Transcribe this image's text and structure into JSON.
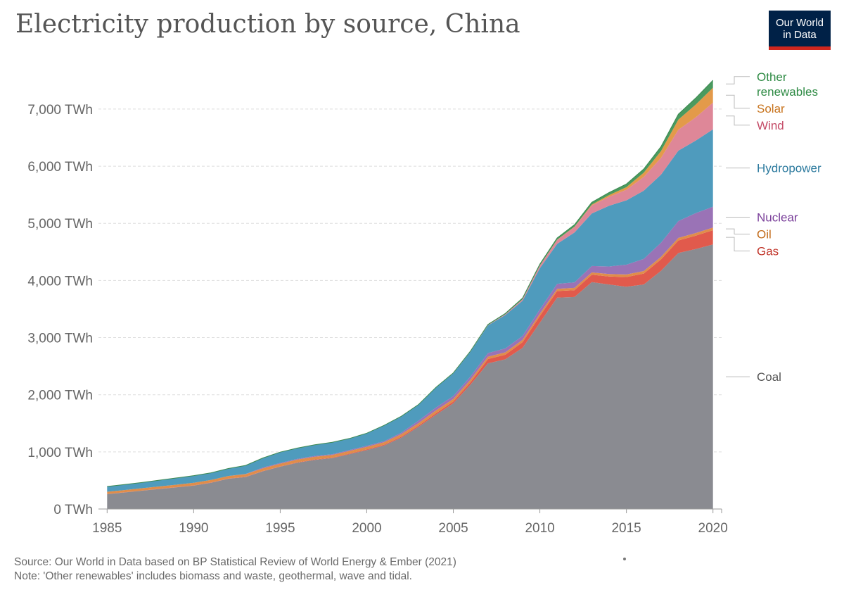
{
  "title": "Electricity production by source, China",
  "logo": {
    "line1": "Our World",
    "line2": "in Data"
  },
  "footer": {
    "source": "Source: Our World in Data based on BP Statistical Review of World Energy & Ember (2021)",
    "note": "Note: 'Other renewables' includes biomass and waste, geothermal, wave and tidal."
  },
  "chart_data": {
    "type": "area",
    "stacked": true,
    "x": [
      1985,
      1986,
      1987,
      1988,
      1989,
      1990,
      1991,
      1992,
      1993,
      1994,
      1995,
      1996,
      1997,
      1998,
      1999,
      2000,
      2001,
      2002,
      2003,
      2004,
      2005,
      2006,
      2007,
      2008,
      2009,
      2010,
      2011,
      2012,
      2013,
      2014,
      2015,
      2016,
      2017,
      2018,
      2019,
      2020
    ],
    "xlim": [
      1984.5,
      2020.5
    ],
    "ylim": [
      0,
      7800
    ],
    "y_ticks": [
      0,
      1000,
      2000,
      3000,
      4000,
      5000,
      6000,
      7000
    ],
    "y_tick_labels": [
      "0 TWh",
      "1,000 TWh",
      "2,000 TWh",
      "3,000 TWh",
      "4,000 TWh",
      "5,000 TWh",
      "6,000 TWh",
      "7,000 TWh"
    ],
    "x_ticks": [
      1985,
      1990,
      1995,
      2000,
      2005,
      2010,
      2015,
      2020
    ],
    "x_tick_labels": [
      "1985",
      "1990",
      "1995",
      "2000",
      "2005",
      "2010",
      "2015",
      "2020"
    ],
    "grid": "horizontal dashed",
    "legend": "right, labels at series ends",
    "series": [
      {
        "name": "Coal",
        "color": "#8a8b91",
        "label_color": "#555555",
        "values": [
          260,
          290,
          320,
          350,
          380,
          410,
          460,
          530,
          560,
          660,
          740,
          810,
          860,
          890,
          960,
          1030,
          1110,
          1250,
          1440,
          1650,
          1850,
          2180,
          2550,
          2620,
          2820,
          3260,
          3700,
          3710,
          3970,
          3930,
          3890,
          3930,
          4170,
          4480,
          4550,
          4630
        ]
      },
      {
        "name": "Gas",
        "color": "#e15a4c",
        "label_color": "#c1352a",
        "values": [
          2,
          2,
          2,
          2,
          2,
          3,
          3,
          3,
          4,
          5,
          5,
          6,
          7,
          8,
          10,
          13,
          15,
          17,
          20,
          26,
          30,
          42,
          75,
          80,
          100,
          120,
          115,
          120,
          130,
          140,
          170,
          190,
          200,
          220,
          235,
          250
        ]
      },
      {
        "name": "Oil",
        "color": "#e08d4a",
        "label_color": "#c26b1a",
        "values": [
          40,
          40,
          41,
          42,
          43,
          45,
          45,
          45,
          46,
          47,
          48,
          49,
          48,
          47,
          46,
          45,
          44,
          44,
          45,
          50,
          45,
          44,
          42,
          42,
          40,
          40,
          40,
          40,
          40,
          42,
          45,
          45,
          45,
          45,
          45,
          45
        ]
      },
      {
        "name": "Nuclear",
        "color": "#9a73b6",
        "label_color": "#7a3f9a",
        "values": [
          0,
          0,
          0,
          0,
          0,
          0,
          0,
          0,
          2,
          14,
          13,
          14,
          14,
          14,
          15,
          17,
          18,
          25,
          43,
          50,
          53,
          55,
          62,
          68,
          70,
          74,
          87,
          97,
          112,
          133,
          171,
          213,
          248,
          295,
          348,
          366
        ]
      },
      {
        "name": "Hydropower",
        "color": "#4f9bbd",
        "label_color": "#2c7a9e",
        "values": [
          92,
          95,
          100,
          110,
          118,
          126,
          125,
          131,
          151,
          167,
          190,
          188,
          196,
          208,
          204,
          222,
          277,
          288,
          283,
          354,
          397,
          436,
          485,
          585,
          616,
          722,
          699,
          872,
          921,
          1064,
          1126,
          1193,
          1190,
          1232,
          1270,
          1355
        ]
      },
      {
        "name": "Wind",
        "color": "#de8798",
        "label_color": "#c44a66",
        "values": [
          0,
          0,
          0,
          0,
          0,
          0,
          0,
          0,
          0,
          0,
          0,
          0,
          0,
          0,
          0,
          0,
          0,
          0,
          0,
          0,
          2,
          4,
          6,
          13,
          26,
          45,
          70,
          96,
          140,
          156,
          186,
          241,
          295,
          366,
          406,
          467
        ]
      },
      {
        "name": "Solar",
        "color": "#e39a4a",
        "label_color": "#c8741e",
        "values": [
          0,
          0,
          0,
          0,
          0,
          0,
          0,
          0,
          0,
          0,
          0,
          0,
          0,
          0,
          0,
          0,
          0,
          0,
          0,
          0,
          0,
          0,
          0,
          0,
          0,
          1,
          3,
          6,
          15,
          29,
          45,
          75,
          118,
          177,
          224,
          261
        ]
      },
      {
        "name": "Other renewables",
        "color": "#4a9a5f",
        "label_color": "#2f8b45",
        "values": [
          0,
          0,
          0,
          0,
          0,
          0,
          0,
          0,
          0,
          0,
          0,
          0,
          0,
          0,
          0,
          0,
          0,
          0,
          0,
          0,
          5,
          7,
          10,
          14,
          20,
          25,
          30,
          35,
          40,
          45,
          55,
          65,
          80,
          95,
          115,
          130
        ]
      }
    ]
  }
}
